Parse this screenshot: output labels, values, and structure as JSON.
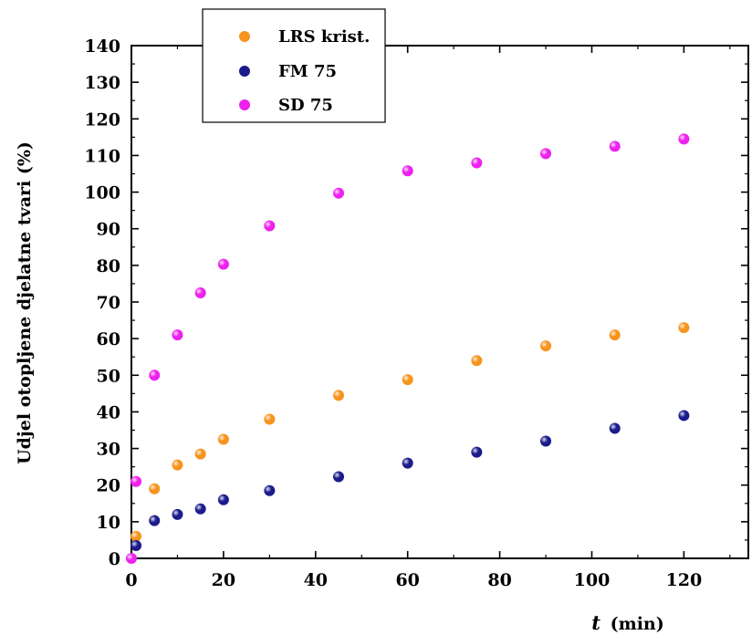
{
  "chart_data": {
    "type": "scatter",
    "xlabel_var": "t",
    "xlabel_unit": "(min)",
    "ylabel": "Udjel otopljene djelatne tvari (%)",
    "xlim": [
      0,
      134
    ],
    "ylim": [
      0,
      140
    ],
    "xticks": [
      0,
      20,
      40,
      60,
      80,
      100,
      120
    ],
    "yticks": [
      0,
      10,
      20,
      30,
      40,
      50,
      60,
      70,
      80,
      90,
      100,
      110,
      120,
      130,
      140
    ],
    "grid": false,
    "legend_position": "top-left",
    "series": [
      {
        "name": "LRS krist.",
        "color": "#F7941D",
        "points": [
          [
            1,
            6
          ],
          [
            5,
            19
          ],
          [
            10,
            25.5
          ],
          [
            15,
            28.5
          ],
          [
            20,
            32.5
          ],
          [
            30,
            38
          ],
          [
            45,
            44.5
          ],
          [
            60,
            48.8
          ],
          [
            75,
            54
          ],
          [
            90,
            58
          ],
          [
            105,
            61
          ],
          [
            120,
            63
          ]
        ]
      },
      {
        "name": "FM 75",
        "color": "#1B1B8C",
        "points": [
          [
            1,
            3.5
          ],
          [
            5,
            10.3
          ],
          [
            10,
            12
          ],
          [
            15,
            13.5
          ],
          [
            20,
            16
          ],
          [
            30,
            18.5
          ],
          [
            45,
            22.3
          ],
          [
            60,
            26
          ],
          [
            75,
            29
          ],
          [
            90,
            32
          ],
          [
            105,
            35.5
          ],
          [
            120,
            39
          ]
        ]
      },
      {
        "name": "SD 75",
        "color": "#EE21EE",
        "points": [
          [
            0,
            0
          ],
          [
            1,
            21
          ],
          [
            5,
            50
          ],
          [
            10,
            61
          ],
          [
            15,
            72.5
          ],
          [
            20,
            80.3
          ],
          [
            30,
            90.8
          ],
          [
            45,
            99.7
          ],
          [
            60,
            105.8
          ],
          [
            75,
            108
          ],
          [
            90,
            110.5
          ],
          [
            105,
            112.5
          ],
          [
            120,
            114.5
          ]
        ]
      }
    ]
  }
}
